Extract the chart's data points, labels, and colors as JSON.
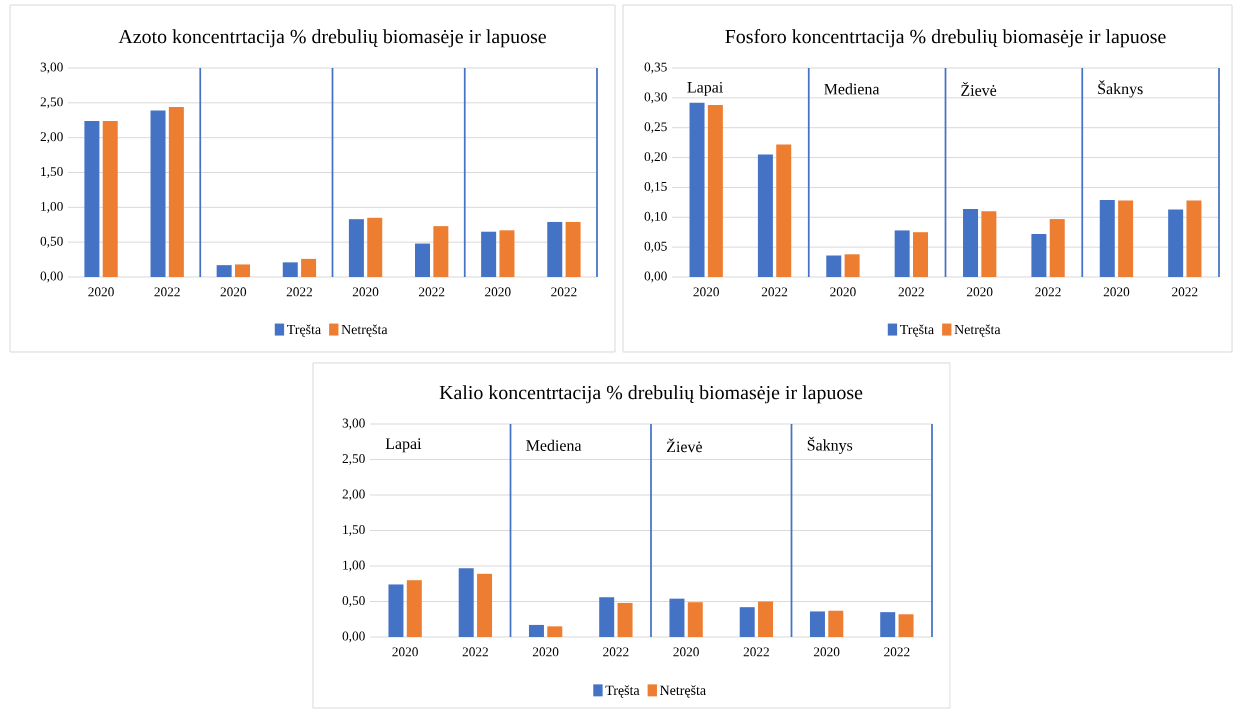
{
  "chart_data": [
    {
      "type": "bar",
      "title": "Azoto koncentrtacija % drebulių biomasėje ir lapuose",
      "categories": [
        "2020",
        "2022",
        "2020",
        "2022",
        "2020",
        "2022",
        "2020",
        "2022"
      ],
      "series": [
        {
          "name": "Tręšta",
          "color": "#4472c4",
          "values": [
            2.24,
            2.39,
            0.17,
            0.21,
            0.83,
            0.48,
            0.65,
            0.79
          ]
        },
        {
          "name": "Netręšta",
          "color": "#ed7d31",
          "values": [
            2.24,
            2.44,
            0.18,
            0.26,
            0.85,
            0.73,
            0.67,
            0.79
          ]
        }
      ],
      "ylim": [
        0,
        3
      ],
      "yticks": [
        {
          "value": 0,
          "label": "0,00"
        },
        {
          "value": 0.5,
          "label": "0,50"
        },
        {
          "value": 1,
          "label": "1,00"
        },
        {
          "value": 1.5,
          "label": "1,50"
        },
        {
          "value": 2,
          "label": "2,00"
        },
        {
          "value": 2.5,
          "label": "2,50"
        },
        {
          "value": 3,
          "label": "3,00"
        }
      ],
      "grid": "y",
      "legend": "bottom"
    },
    {
      "type": "bar",
      "title": "Fosforo koncentrtacija % drebulių biomasėje ir lapuose",
      "categories": [
        "2020",
        "2022",
        "2020",
        "2022",
        "2020",
        "2022",
        "2020",
        "2022"
      ],
      "series": [
        {
          "name": "Tręšta",
          "color": "#4472c4",
          "values": [
            0.292,
            0.205,
            0.036,
            0.078,
            0.114,
            0.072,
            0.129,
            0.113
          ]
        },
        {
          "name": "Netręšta",
          "color": "#ed7d31",
          "values": [
            0.288,
            0.222,
            0.038,
            0.075,
            0.11,
            0.097,
            0.128,
            0.128
          ]
        }
      ],
      "ylim": [
        0,
        0.35
      ],
      "yticks": [
        {
          "value": 0,
          "label": "0,00"
        },
        {
          "value": 0.05,
          "label": "0,05"
        },
        {
          "value": 0.1,
          "label": "0,10"
        },
        {
          "value": 0.15,
          "label": "0,15"
        },
        {
          "value": 0.2,
          "label": "0,20"
        },
        {
          "value": 0.25,
          "label": "0,25"
        },
        {
          "value": 0.3,
          "label": "0,30"
        },
        {
          "value": 0.35,
          "label": "0,35"
        }
      ],
      "grid": "y",
      "legend": "bottom",
      "annotations": [
        "Lapai",
        "Mediena",
        "Žievė",
        "Šaknys"
      ]
    },
    {
      "type": "bar",
      "title": "Kalio koncentrtacija % drebulių biomasėje ir lapuose",
      "categories": [
        "2020",
        "2022",
        "2020",
        "2022",
        "2020",
        "2022",
        "2020",
        "2022"
      ],
      "series": [
        {
          "name": "Tręšta",
          "color": "#4472c4",
          "values": [
            0.74,
            0.97,
            0.17,
            0.56,
            0.54,
            0.42,
            0.36,
            0.35
          ]
        },
        {
          "name": "Netręšta",
          "color": "#ed7d31",
          "values": [
            0.8,
            0.89,
            0.15,
            0.48,
            0.49,
            0.5,
            0.37,
            0.32
          ]
        }
      ],
      "ylim": [
        0,
        3
      ],
      "yticks": [
        {
          "value": 0,
          "label": "0,00"
        },
        {
          "value": 0.5,
          "label": "0,50"
        },
        {
          "value": 1,
          "label": "1,00"
        },
        {
          "value": 1.5,
          "label": "1,50"
        },
        {
          "value": 2,
          "label": "2,00"
        },
        {
          "value": 2.5,
          "label": "2,50"
        },
        {
          "value": 3,
          "label": "3,00"
        }
      ],
      "grid": "y",
      "legend": "bottom",
      "annotations": [
        "Lapai",
        "Mediena",
        "Žievė",
        "Šaknys"
      ]
    }
  ]
}
